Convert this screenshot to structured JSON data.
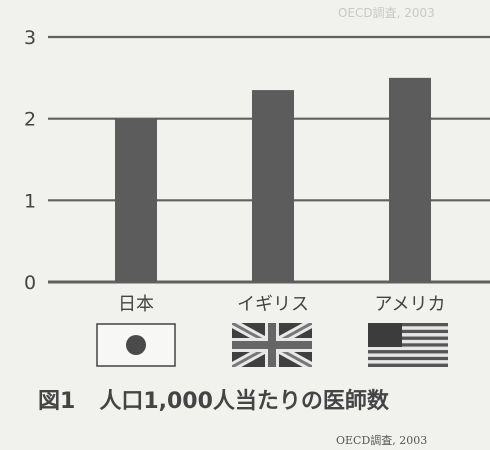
{
  "chart_data": {
    "type": "bar",
    "categories": [
      "日本",
      "イギリス",
      "アメリカ"
    ],
    "values": [
      2.0,
      2.35,
      2.5
    ],
    "ylim": [
      0,
      3
    ],
    "yticks": [
      0,
      1,
      2,
      3
    ],
    "grid": true,
    "bar_color": "#5c5c5c",
    "grid_color": "#606060"
  },
  "flags": [
    "japan-flag-icon",
    "uk-flag-icon",
    "us-flag-icon"
  ],
  "caption": {
    "figure_number": "図1",
    "title": "人口1,000人当たりの医師数"
  },
  "source": "OECD調査, 2003",
  "faded_text": "OECD調査, 2003"
}
